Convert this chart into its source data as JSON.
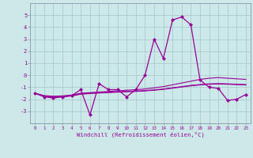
{
  "x": [
    0,
    1,
    2,
    3,
    4,
    5,
    6,
    7,
    8,
    9,
    10,
    11,
    12,
    13,
    14,
    15,
    16,
    17,
    18,
    19,
    20,
    21,
    22,
    23
  ],
  "y_main": [
    -1.5,
    -1.8,
    -1.9,
    -1.8,
    -1.7,
    -1.2,
    -3.3,
    -0.7,
    -1.2,
    -1.2,
    -1.8,
    -1.2,
    0.0,
    3.0,
    1.4,
    4.6,
    4.85,
    4.2,
    -0.4,
    -1.0,
    -1.1,
    -2.1,
    -2.0,
    -1.6
  ],
  "trend_lines": [
    [
      -1.5,
      -1.7,
      -1.75,
      -1.72,
      -1.65,
      -1.5,
      -1.45,
      -1.4,
      -1.35,
      -1.3,
      -1.25,
      -1.2,
      -1.15,
      -1.05,
      -0.95,
      -0.8,
      -0.65,
      -0.5,
      -0.35,
      -0.25,
      -0.2,
      -0.25,
      -0.3,
      -0.35
    ],
    [
      -1.5,
      -1.72,
      -1.8,
      -1.76,
      -1.7,
      -1.55,
      -1.5,
      -1.45,
      -1.42,
      -1.38,
      -1.35,
      -1.32,
      -1.28,
      -1.22,
      -1.15,
      -1.05,
      -0.95,
      -0.85,
      -0.78,
      -0.72,
      -0.7,
      -0.72,
      -0.75,
      -0.78
    ],
    [
      -1.5,
      -1.75,
      -1.82,
      -1.79,
      -1.73,
      -1.58,
      -1.53,
      -1.48,
      -1.45,
      -1.41,
      -1.38,
      -1.35,
      -1.31,
      -1.25,
      -1.18,
      -1.08,
      -0.98,
      -0.88,
      -0.81,
      -0.75,
      -0.73,
      -0.75,
      -0.78,
      -0.81
    ]
  ],
  "color": "#990099",
  "bg_color": "#cce8e8",
  "grid_color": "#aacccc",
  "xlabel": "Windchill (Refroidissement éolien,°C)",
  "ylim": [
    -4,
    6
  ],
  "xlim": [
    -0.5,
    23.5
  ],
  "yticks": [
    -3,
    -2,
    -1,
    0,
    1,
    2,
    3,
    4,
    5
  ],
  "xticks": [
    0,
    1,
    2,
    3,
    4,
    5,
    6,
    7,
    8,
    9,
    10,
    11,
    12,
    13,
    14,
    15,
    16,
    17,
    18,
    19,
    20,
    21,
    22,
    23
  ]
}
